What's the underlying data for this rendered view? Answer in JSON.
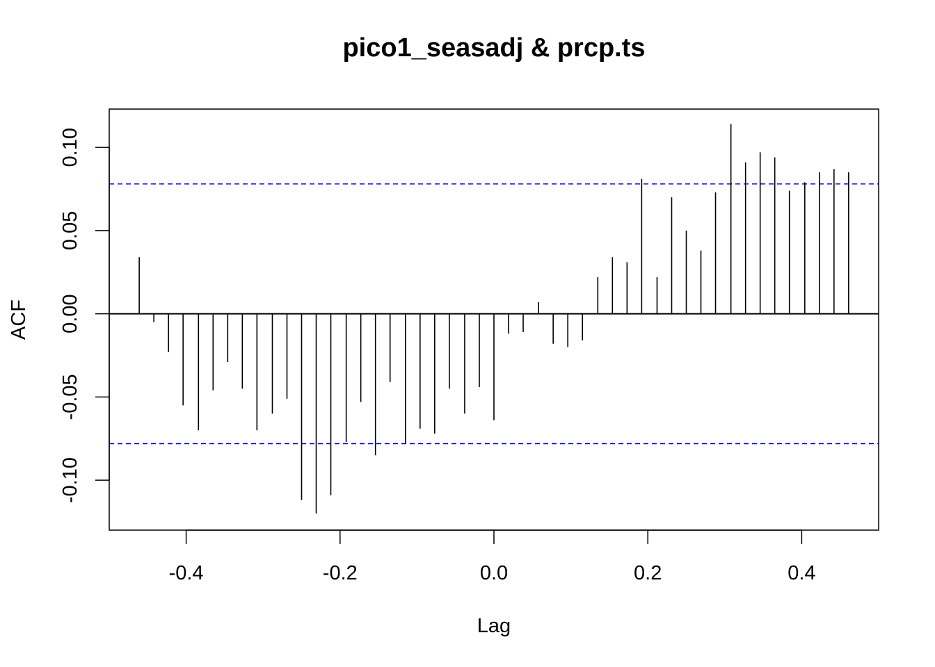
{
  "chart_data": {
    "type": "bar",
    "subtype": "acf",
    "title": "pico1_seasadj & prcp.ts",
    "xlabel": "Lag",
    "ylabel": "ACF",
    "xlim": [
      -0.5,
      0.5
    ],
    "ylim": [
      -0.13,
      0.123
    ],
    "x_ticks": [
      -0.4,
      -0.2,
      0.0,
      0.2,
      0.4
    ],
    "x_tick_labels": [
      "-0.4",
      "-0.2",
      "0.0",
      "0.2",
      "0.4"
    ],
    "y_ticks": [
      -0.1,
      -0.05,
      0.0,
      0.05,
      0.1
    ],
    "y_tick_labels": [
      "-0.10",
      "-0.05",
      "0.00",
      "0.05",
      "0.10"
    ],
    "grid": false,
    "zero_line": true,
    "confidence_bounds": {
      "upper": 0.078,
      "lower": -0.078,
      "color": "#0000cc",
      "style": "dashed"
    },
    "line_color": "#000000",
    "x": [
      -0.461,
      -0.442,
      -0.423,
      -0.404,
      -0.384,
      -0.365,
      -0.346,
      -0.327,
      -0.308,
      -0.288,
      -0.269,
      -0.25,
      -0.231,
      -0.212,
      -0.192,
      -0.173,
      -0.154,
      -0.135,
      -0.115,
      -0.096,
      -0.077,
      -0.058,
      -0.038,
      -0.019,
      0.0,
      0.019,
      0.038,
      0.058,
      0.077,
      0.096,
      0.115,
      0.135,
      0.154,
      0.173,
      0.192,
      0.212,
      0.231,
      0.25,
      0.269,
      0.288,
      0.308,
      0.327,
      0.346,
      0.365,
      0.384,
      0.404,
      0.423,
      0.442,
      0.461
    ],
    "values": [
      0.034,
      -0.005,
      -0.023,
      -0.055,
      -0.07,
      -0.046,
      -0.029,
      -0.045,
      -0.07,
      -0.06,
      -0.051,
      -0.112,
      -0.12,
      -0.109,
      -0.077,
      -0.053,
      -0.085,
      -0.041,
      -0.078,
      -0.069,
      -0.072,
      -0.045,
      -0.06,
      -0.044,
      -0.064,
      -0.012,
      -0.011,
      0.007,
      -0.018,
      -0.02,
      -0.016,
      0.022,
      0.034,
      0.031,
      0.081,
      0.022,
      0.07,
      0.05,
      0.038,
      0.073,
      0.114,
      0.091,
      0.097,
      0.094,
      0.074,
      0.079,
      0.085,
      0.087,
      0.085
    ]
  }
}
